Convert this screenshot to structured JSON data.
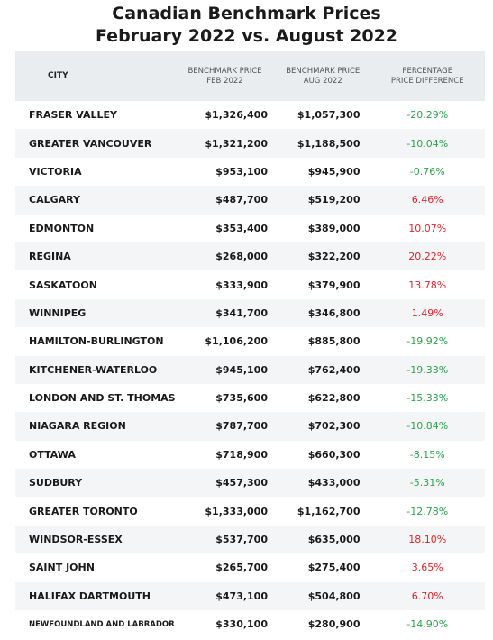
{
  "header": {
    "title": [
      "Canadian Benchmark Prices",
      "February 2022 vs. August 2022"
    ]
  },
  "table": {
    "columns": [
      [
        "CITY"
      ],
      [
        "BENCHMARK PRICE",
        "FEB 2022"
      ],
      [
        "BENCHMARK PRICE",
        "AUG 2022"
      ],
      [
        "PERCENTAGE",
        "PRICE DIFFERENCE"
      ]
    ],
    "rows": [
      [
        "FRASER VALLEY",
        "$1,326,400",
        "$1,057,300",
        "-20.29%"
      ],
      [
        "GREATER VANCOUVER",
        "$1,321,200",
        "$1,188,500",
        "-10.04%"
      ],
      [
        "VICTORIA",
        "$953,100",
        "$945,900",
        "-0.76%"
      ],
      [
        "CALGARY",
        "$487,700",
        "$519,200",
        "6.46%"
      ],
      [
        "EDMONTON",
        "$353,400",
        "$389,000",
        "10.07%"
      ],
      [
        "REGINA",
        "$268,000",
        "$322,200",
        "20.22%"
      ],
      [
        "SASKATOON",
        "$333,900",
        "$379,900",
        "13.78%"
      ],
      [
        "WINNIPEG",
        "$341,700",
        "$346,800",
        "1.49%"
      ],
      [
        "HAMILTON-BURLINGTON",
        "$1,106,200",
        "$885,800",
        "-19.92%"
      ],
      [
        "KITCHENER-WATERLOO",
        "$945,100",
        "$762,400",
        "-19.33%"
      ],
      [
        "LONDON AND ST. THOMAS",
        "$735,600",
        "$622,800",
        "-15.33%"
      ],
      [
        "NIAGARA REGION",
        "$787,700",
        "$702,300",
        "-10.84%"
      ],
      [
        "OTTAWA",
        "$718,900",
        "$660,300",
        "-8.15%"
      ],
      [
        "SUDBURY",
        "$457,300",
        "$433,000",
        "-5.31%"
      ],
      [
        "GREATER TORONTO",
        "$1,333,000",
        "$1,162,700",
        "-12.78%"
      ],
      [
        "WINDSOR-ESSEX",
        "$537,700",
        "$635,000",
        "18.10%"
      ],
      [
        "SAINT JOHN",
        "$265,700",
        "$275,400",
        "3.65%"
      ],
      [
        "HALIFAX DARTMOUTH",
        "$473,100",
        "$504,800",
        "6.70%"
      ],
      [
        "NEWFOUNDLAND AND LABRADOR",
        "$330,100",
        "$280,900",
        "-14.90%"
      ]
    ]
  }
}
